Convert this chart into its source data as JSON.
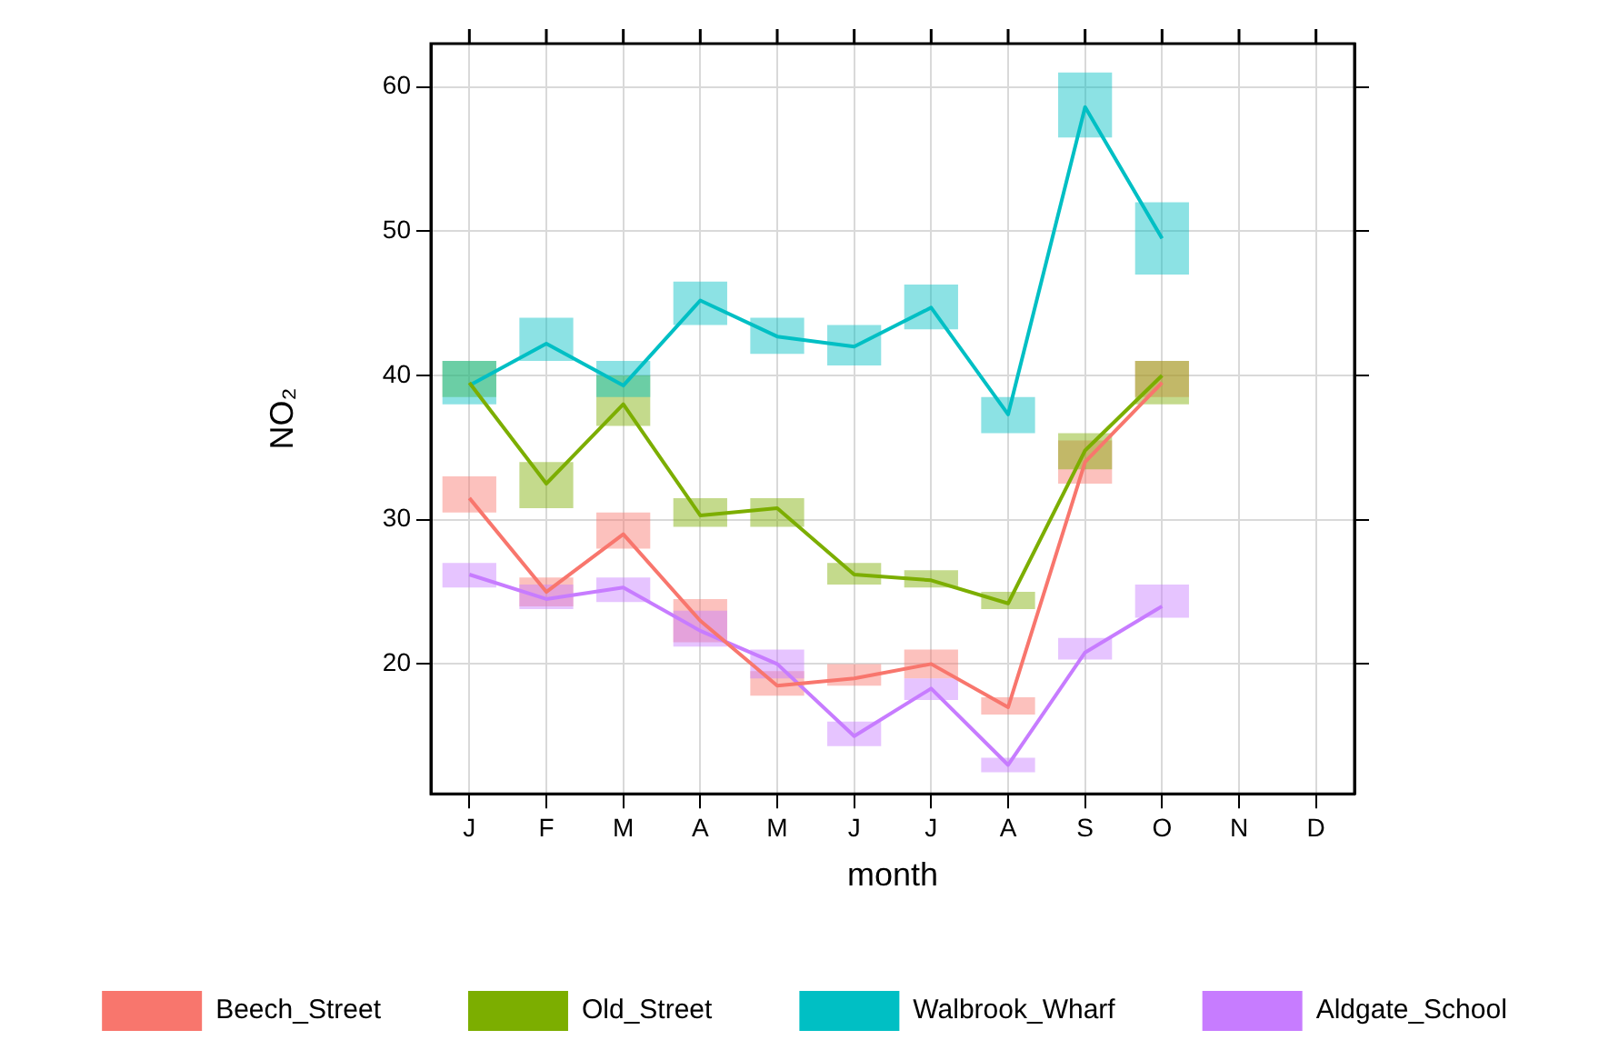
{
  "chart_data": {
    "type": "line",
    "xlabel": "month",
    "ylabel": "NO₂",
    "categories": [
      "J",
      "F",
      "M",
      "A",
      "M",
      "J",
      "J",
      "A",
      "S",
      "O",
      "N",
      "D"
    ],
    "series": [
      {
        "name": "Beech_Street",
        "color": "#f8766d",
        "values": [
          31.5,
          25,
          29,
          23,
          18.5,
          19,
          20,
          17,
          34,
          39.5,
          null,
          null
        ],
        "errors": [
          [
            30.5,
            33
          ],
          [
            24,
            26
          ],
          [
            28,
            30.5
          ],
          [
            21.5,
            24.5
          ],
          [
            17.8,
            19.5
          ],
          [
            18.5,
            20
          ],
          [
            19,
            21
          ],
          [
            16.5,
            17.7
          ],
          [
            32.5,
            35.5
          ],
          [
            38.5,
            41
          ],
          null,
          null
        ]
      },
      {
        "name": "Old_Street",
        "color": "#7cae00",
        "values": [
          39.5,
          32.5,
          38,
          30.3,
          30.8,
          26.2,
          25.8,
          24.2,
          34.8,
          40,
          null,
          null
        ],
        "errors": [
          [
            38.5,
            41
          ],
          [
            30.8,
            34
          ],
          [
            36.5,
            40
          ],
          [
            29.5,
            31.5
          ],
          [
            29.5,
            31.5
          ],
          [
            25.5,
            27
          ],
          [
            25.3,
            26.5
          ],
          [
            23.8,
            25
          ],
          [
            33.5,
            36
          ],
          [
            38,
            41
          ],
          null,
          null
        ]
      },
      {
        "name": "Walbrook_Wharf",
        "color": "#00bfc4",
        "values": [
          39.3,
          42.2,
          39.3,
          45.2,
          42.7,
          42,
          44.7,
          37.3,
          58.6,
          49.5,
          null,
          null
        ],
        "errors": [
          [
            38,
            41
          ],
          [
            41,
            44
          ],
          [
            38.5,
            41
          ],
          [
            43.5,
            46.5
          ],
          [
            41.5,
            44
          ],
          [
            40.7,
            43.5
          ],
          [
            43.2,
            46.3
          ],
          [
            36,
            38.5
          ],
          [
            56.5,
            61
          ],
          [
            47,
            52
          ],
          null,
          null
        ]
      },
      {
        "name": "Aldgate_School",
        "color": "#c77cff",
        "values": [
          26.2,
          24.5,
          25.3,
          22.3,
          20,
          15,
          18.3,
          13,
          20.8,
          24,
          null,
          null
        ],
        "errors": [
          [
            25.3,
            27
          ],
          [
            23.8,
            25.5
          ],
          [
            24.3,
            26
          ],
          [
            21.2,
            23.7
          ],
          [
            19,
            21
          ],
          [
            14.3,
            16
          ],
          [
            17.5,
            19
          ],
          [
            12.5,
            13.5
          ],
          [
            20.3,
            21.8
          ],
          [
            23.2,
            25.5
          ],
          null,
          null
        ]
      }
    ],
    "ylim": [
      11,
      63
    ],
    "yticks": [
      20,
      30,
      40,
      50,
      60
    ],
    "grid": true,
    "legend": "bottom",
    "marker": "none",
    "line_style": "solid"
  }
}
